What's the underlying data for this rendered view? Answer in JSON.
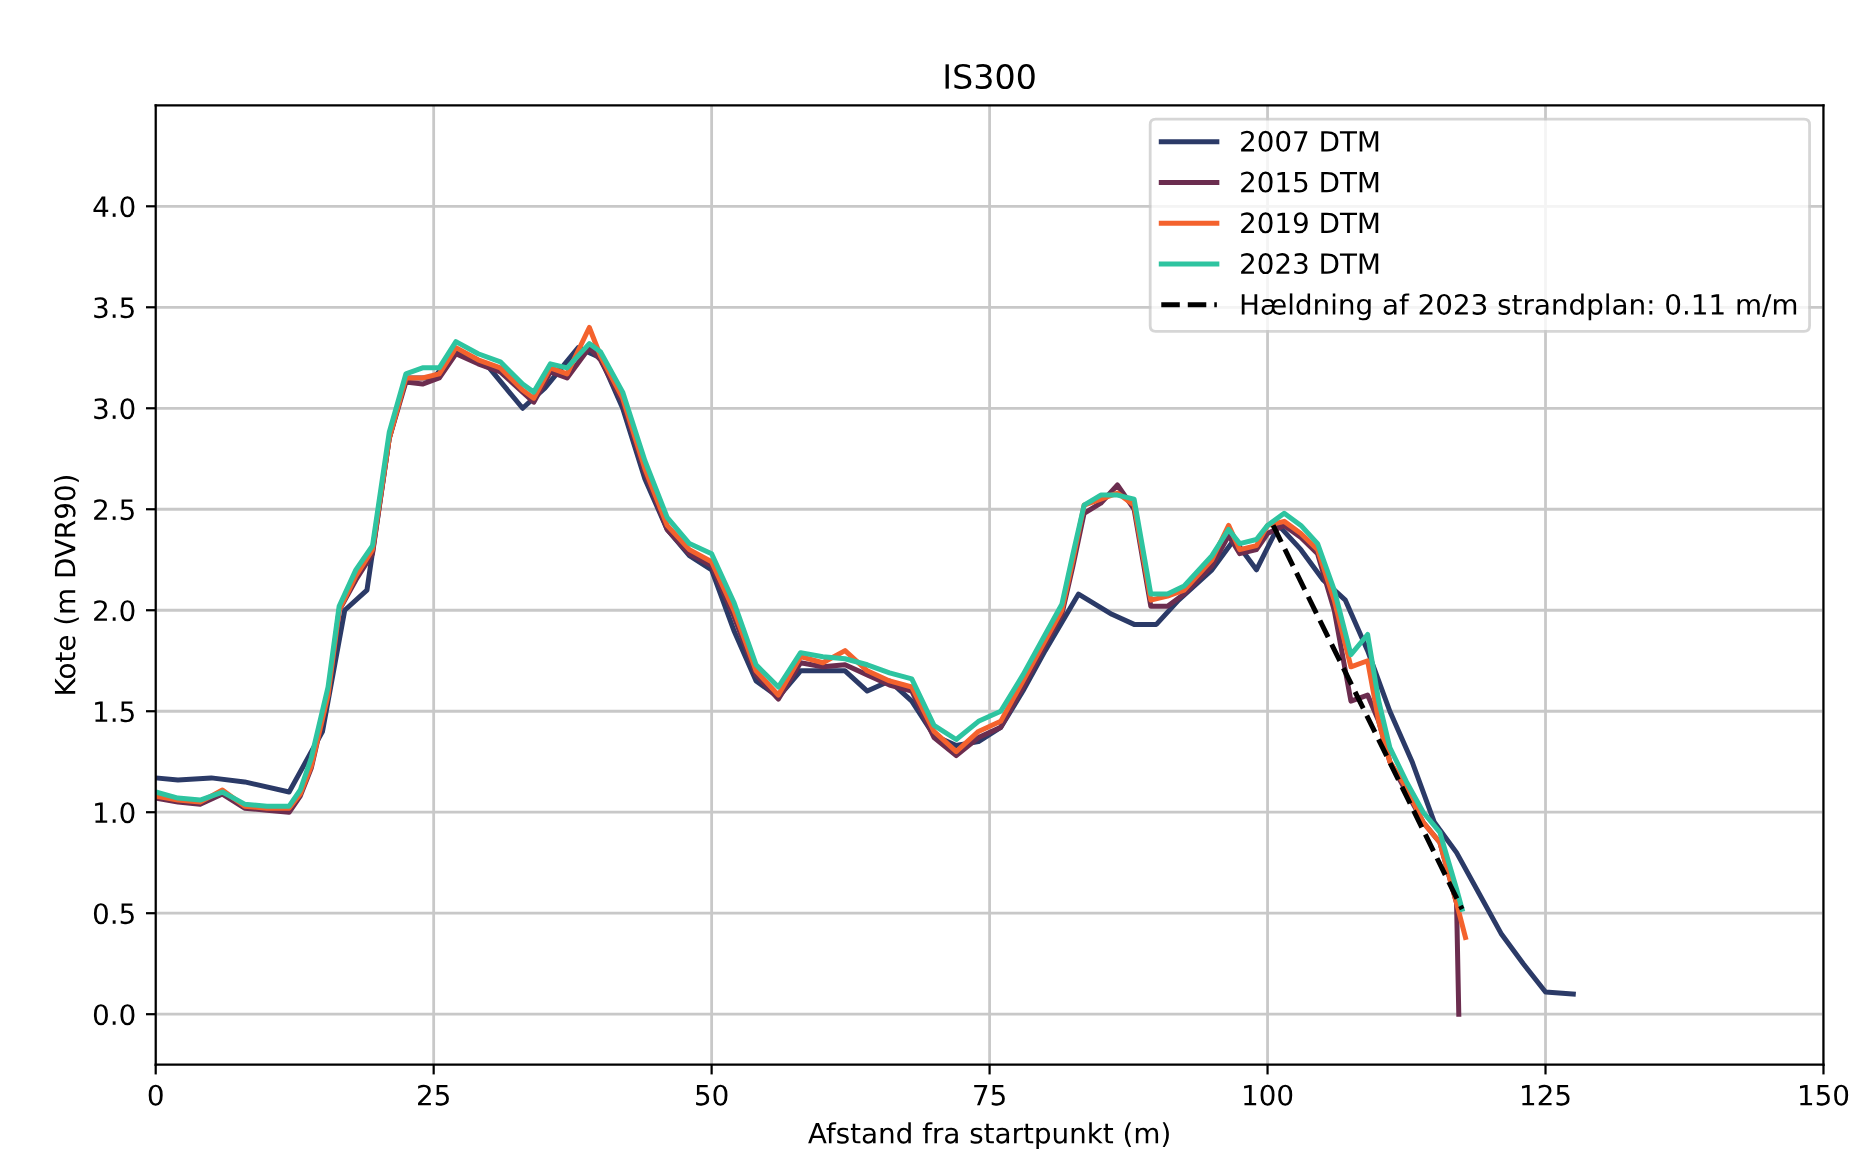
{
  "chart_data": {
    "type": "line",
    "title": "IS300",
    "xlabel": "Afstand fra startpunkt (m)",
    "ylabel": "Kote (m DVR90)",
    "xlim": [
      0,
      150
    ],
    "xticks": [
      0,
      25,
      50,
      75,
      100,
      125,
      150
    ],
    "ylim": [
      -0.25,
      4.5
    ],
    "yticks": [
      {
        "value": 0,
        "label": "0.0"
      },
      0.5,
      {
        "value": 1,
        "label": "1.0"
      },
      1.5,
      {
        "value": 2,
        "label": "2.0"
      },
      2.5,
      {
        "value": 3,
        "label": "3.0"
      },
      3.5,
      {
        "value": 4,
        "label": "4.0"
      }
    ],
    "grid": true,
    "legend": "top right",
    "line_style": "solid",
    "series": [
      {
        "name": "2007 DTM",
        "color": "#2b3a67",
        "x": [
          0,
          2,
          5,
          8,
          12,
          15,
          17,
          19,
          21,
          22.5,
          25,
          27,
          30,
          33,
          35,
          38,
          40,
          42,
          44,
          46,
          48,
          50,
          52,
          54,
          56,
          58,
          60,
          62,
          64,
          66,
          68,
          70,
          72,
          74,
          76,
          78,
          80,
          83,
          86,
          88,
          90,
          92,
          95,
          97,
          99,
          101,
          103,
          105,
          107,
          109,
          111,
          113,
          115,
          117,
          119,
          121,
          123,
          125,
          127.5
        ],
        "values": [
          1.17,
          1.16,
          1.17,
          1.15,
          1.1,
          1.4,
          2.0,
          2.1,
          2.85,
          3.15,
          3.15,
          3.28,
          3.2,
          3.0,
          3.1,
          3.3,
          3.25,
          3.0,
          2.65,
          2.4,
          2.27,
          2.2,
          1.9,
          1.65,
          1.57,
          1.7,
          1.7,
          1.7,
          1.6,
          1.65,
          1.55,
          1.38,
          1.33,
          1.35,
          1.42,
          1.6,
          1.8,
          2.08,
          1.98,
          1.93,
          1.93,
          2.05,
          2.2,
          2.35,
          2.2,
          2.42,
          2.3,
          2.15,
          2.05,
          1.8,
          1.5,
          1.25,
          0.95,
          0.8,
          0.6,
          0.4,
          0.25,
          0.11,
          0.1
        ]
      },
      {
        "name": "2015 DTM",
        "color": "#6b2d4f",
        "x": [
          0,
          2,
          4,
          6,
          8,
          10,
          12,
          13,
          14,
          15.5,
          16.5,
          18,
          19.5,
          21,
          22.5,
          24,
          25.5,
          27,
          29,
          31,
          33,
          34,
          35.5,
          37,
          39,
          40,
          42,
          44,
          46,
          48,
          50,
          52,
          54,
          56,
          58,
          60,
          62,
          64,
          66,
          68,
          70,
          72,
          74,
          76,
          78,
          80,
          81.5,
          82.5,
          83.5,
          85,
          86.5,
          88,
          89.5,
          91,
          92.5,
          95,
          96.5,
          97.5,
          99,
          100,
          101.5,
          103,
          104.5,
          106,
          107.5,
          109,
          110,
          111,
          112.5,
          114,
          115.5,
          117,
          117.2
        ],
        "values": [
          1.07,
          1.05,
          1.04,
          1.09,
          1.02,
          1.01,
          1.0,
          1.08,
          1.22,
          1.58,
          2.0,
          2.15,
          2.28,
          2.85,
          3.13,
          3.12,
          3.15,
          3.27,
          3.22,
          3.18,
          3.08,
          3.03,
          3.18,
          3.15,
          3.3,
          3.24,
          3.03,
          2.68,
          2.4,
          2.28,
          2.22,
          1.97,
          1.68,
          1.56,
          1.74,
          1.72,
          1.73,
          1.68,
          1.63,
          1.6,
          1.37,
          1.28,
          1.37,
          1.42,
          1.62,
          1.83,
          1.98,
          2.22,
          2.48,
          2.53,
          2.62,
          2.5,
          2.02,
          2.02,
          2.08,
          2.22,
          2.37,
          2.28,
          2.3,
          2.38,
          2.42,
          2.36,
          2.28,
          2.0,
          1.55,
          1.58,
          1.45,
          1.25,
          1.1,
          0.95,
          0.85,
          0.55,
          0.0
        ]
      },
      {
        "name": "2019 DTM",
        "color": "#f4622d",
        "x": [
          0,
          2,
          4,
          6,
          8,
          10,
          12,
          13,
          14,
          15.5,
          16.5,
          18,
          19.5,
          21,
          22.5,
          24,
          25.5,
          27,
          29,
          31,
          33,
          34,
          35.5,
          37,
          39,
          40,
          42,
          44,
          46,
          48,
          50,
          52,
          54,
          56,
          58,
          60,
          62,
          64,
          66,
          68,
          70,
          72,
          74,
          76,
          78,
          80,
          81.5,
          82.5,
          83.5,
          85,
          86.5,
          88,
          89.5,
          91,
          92.5,
          95,
          96.5,
          97.5,
          99,
          100,
          101.5,
          103,
          104.5,
          106,
          107.5,
          109,
          110,
          111,
          112.5,
          114,
          115.5,
          117,
          117.8
        ],
        "values": [
          1.08,
          1.06,
          1.05,
          1.11,
          1.03,
          1.02,
          1.02,
          1.09,
          1.23,
          1.58,
          2.0,
          2.17,
          2.3,
          2.85,
          3.15,
          3.15,
          3.17,
          3.3,
          3.24,
          3.2,
          3.09,
          3.05,
          3.2,
          3.17,
          3.4,
          3.26,
          3.05,
          2.7,
          2.42,
          2.3,
          2.24,
          2.0,
          1.7,
          1.58,
          1.77,
          1.74,
          1.8,
          1.7,
          1.65,
          1.62,
          1.4,
          1.3,
          1.4,
          1.45,
          1.65,
          1.85,
          2.0,
          2.25,
          2.52,
          2.55,
          2.58,
          2.52,
          2.05,
          2.07,
          2.1,
          2.25,
          2.42,
          2.3,
          2.32,
          2.42,
          2.44,
          2.38,
          2.3,
          2.05,
          1.72,
          1.75,
          1.45,
          1.25,
          1.12,
          0.95,
          0.85,
          0.55,
          0.38
        ]
      },
      {
        "name": "2023 DTM",
        "color": "#2ec4a0",
        "x": [
          0,
          2,
          4,
          6,
          8,
          10,
          12,
          13,
          14,
          15.5,
          16.5,
          18,
          19.5,
          21,
          22.5,
          24,
          25.5,
          27,
          29,
          31,
          33,
          34,
          35.5,
          37,
          39,
          40,
          42,
          44,
          46,
          48,
          50,
          52,
          54,
          56,
          58,
          60,
          62,
          64,
          66,
          68,
          70,
          72,
          74,
          76,
          78,
          80,
          81.5,
          82.5,
          83.5,
          85,
          86.5,
          88,
          89.5,
          91,
          92.5,
          95,
          96.5,
          97.5,
          99,
          100,
          101.5,
          103,
          104.5,
          106,
          107.5,
          109,
          110,
          111,
          112.5,
          114,
          115.5,
          117,
          117.5
        ],
        "values": [
          1.1,
          1.07,
          1.06,
          1.1,
          1.04,
          1.03,
          1.03,
          1.11,
          1.27,
          1.62,
          2.02,
          2.2,
          2.32,
          2.88,
          3.17,
          3.2,
          3.2,
          3.33,
          3.27,
          3.23,
          3.12,
          3.08,
          3.22,
          3.2,
          3.32,
          3.28,
          3.08,
          2.74,
          2.46,
          2.33,
          2.28,
          2.04,
          1.73,
          1.62,
          1.79,
          1.77,
          1.76,
          1.73,
          1.69,
          1.66,
          1.43,
          1.36,
          1.45,
          1.5,
          1.68,
          1.88,
          2.03,
          2.28,
          2.52,
          2.57,
          2.57,
          2.55,
          2.08,
          2.08,
          2.12,
          2.27,
          2.4,
          2.33,
          2.35,
          2.42,
          2.48,
          2.42,
          2.33,
          2.1,
          1.78,
          1.88,
          1.55,
          1.32,
          1.15,
          1.0,
          0.9,
          0.62,
          0.52
        ]
      },
      {
        "name": "Hældning af 2023 strandplan: 0.11 m/m",
        "color": "#000000",
        "line_style": "dashed",
        "x": [
          100.5,
          117.5
        ],
        "values": [
          2.42,
          0.52
        ]
      }
    ]
  }
}
